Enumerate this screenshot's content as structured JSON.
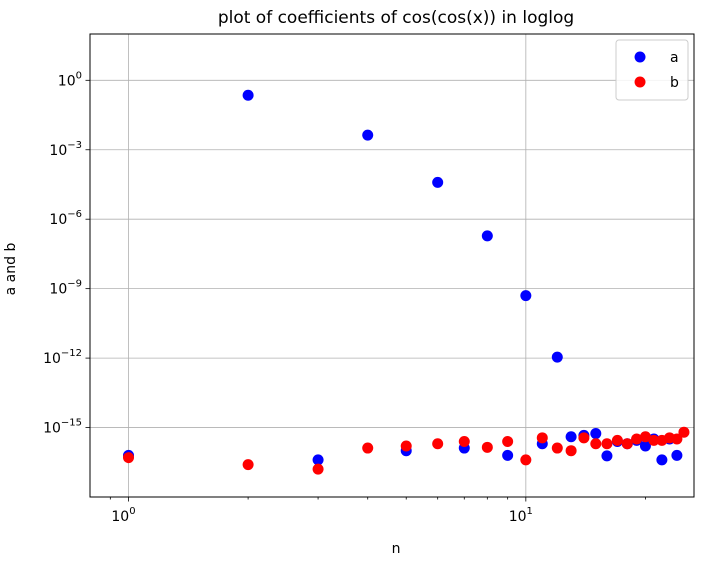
{
  "chart_data": {
    "type": "scatter",
    "title": "plot of coefficients of cos(cos(x)) in loglog",
    "xlabel": "n",
    "ylabel": "a and b",
    "xscale": "log",
    "yscale": "log",
    "xlim": [
      0.8,
      26.5
    ],
    "ylim": [
      1e-18,
      100.0
    ],
    "x_ticks": [
      {
        "value": 1,
        "base": "10",
        "exp": "0"
      },
      {
        "value": 10,
        "base": "10",
        "exp": "1"
      }
    ],
    "y_ticks": [
      {
        "value": 1,
        "base": "10",
        "exp": "0"
      },
      {
        "value": 0.001,
        "base": "10",
        "exp": "−3"
      },
      {
        "value": 1e-06,
        "base": "10",
        "exp": "−6"
      },
      {
        "value": 1e-09,
        "base": "10",
        "exp": "−9"
      },
      {
        "value": 1e-12,
        "base": "10",
        "exp": "−12"
      },
      {
        "value": 1e-15,
        "base": "10",
        "exp": "−15"
      }
    ],
    "grid": true,
    "legend_position": "top-right",
    "series": [
      {
        "name": "a",
        "color": "#0000ff",
        "points": [
          [
            1,
            6.3e-17
          ],
          [
            2,
            0.227
          ],
          [
            3,
            4e-17
          ],
          [
            4,
            0.0043
          ],
          [
            5,
            1e-16
          ],
          [
            6,
            3.9e-05
          ],
          [
            7,
            1.3e-16
          ],
          [
            8,
            1.9e-07
          ],
          [
            9,
            6.3e-17
          ],
          [
            10,
            5e-10
          ],
          [
            11,
            2e-16
          ],
          [
            12,
            1.1e-12
          ],
          [
            13,
            4e-16
          ],
          [
            14,
            4.6e-16
          ],
          [
            15,
            5.5e-16
          ],
          [
            16,
            6e-17
          ],
          [
            17,
            2.5e-16
          ],
          [
            18,
            2e-16
          ],
          [
            19,
            2.8e-16
          ],
          [
            20,
            1.6e-16
          ],
          [
            21,
            3.2e-16
          ],
          [
            22,
            4e-17
          ],
          [
            23,
            3.2e-16
          ],
          [
            24,
            6.3e-17
          ]
        ]
      },
      {
        "name": "b",
        "color": "#ff0000",
        "points": [
          [
            1,
            5e-17
          ],
          [
            2,
            2.5e-17
          ],
          [
            3,
            1.6e-17
          ],
          [
            4,
            1.3e-16
          ],
          [
            5,
            1.6e-16
          ],
          [
            6,
            2e-16
          ],
          [
            7,
            2.5e-16
          ],
          [
            8,
            1.4e-16
          ],
          [
            9,
            2.5e-16
          ],
          [
            10,
            4e-17
          ],
          [
            11,
            3.6e-16
          ],
          [
            12,
            1.3e-16
          ],
          [
            13,
            1e-16
          ],
          [
            14,
            3.6e-16
          ],
          [
            15,
            2e-16
          ],
          [
            16,
            2e-16
          ],
          [
            17,
            2.8e-16
          ],
          [
            18,
            2e-16
          ],
          [
            19,
            3.2e-16
          ],
          [
            20,
            4e-16
          ],
          [
            21,
            2.8e-16
          ],
          [
            22,
            2.8e-16
          ],
          [
            23,
            3.6e-16
          ],
          [
            24,
            3.2e-16
          ],
          [
            25,
            6.3e-16
          ]
        ]
      }
    ]
  }
}
